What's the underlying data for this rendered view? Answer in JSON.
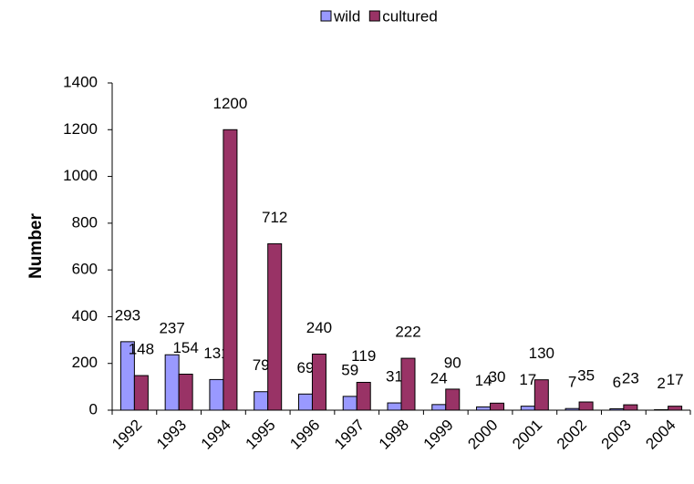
{
  "chart_data": {
    "type": "bar",
    "y_label": "Number",
    "categories": [
      "1992",
      "1993",
      "1994",
      "1995",
      "1996",
      "1997",
      "1998",
      "1999",
      "2000",
      "2001",
      "2002",
      "2003",
      "2004"
    ],
    "series": [
      {
        "name": "wild",
        "color": "#9999ff",
        "values": [
          293,
          237,
          131,
          79,
          69,
          59,
          31,
          24,
          14,
          17,
          7,
          6,
          2
        ]
      },
      {
        "name": "cultured",
        "color": "#993366",
        "values": [
          148,
          154,
          1200,
          712,
          240,
          119,
          222,
          90,
          30,
          130,
          35,
          23,
          17
        ]
      }
    ],
    "ylim": [
      0,
      1400
    ],
    "yticks": [
      0,
      200,
      400,
      600,
      800,
      1000,
      1200,
      1400
    ],
    "legend": "top",
    "grid": false
  }
}
